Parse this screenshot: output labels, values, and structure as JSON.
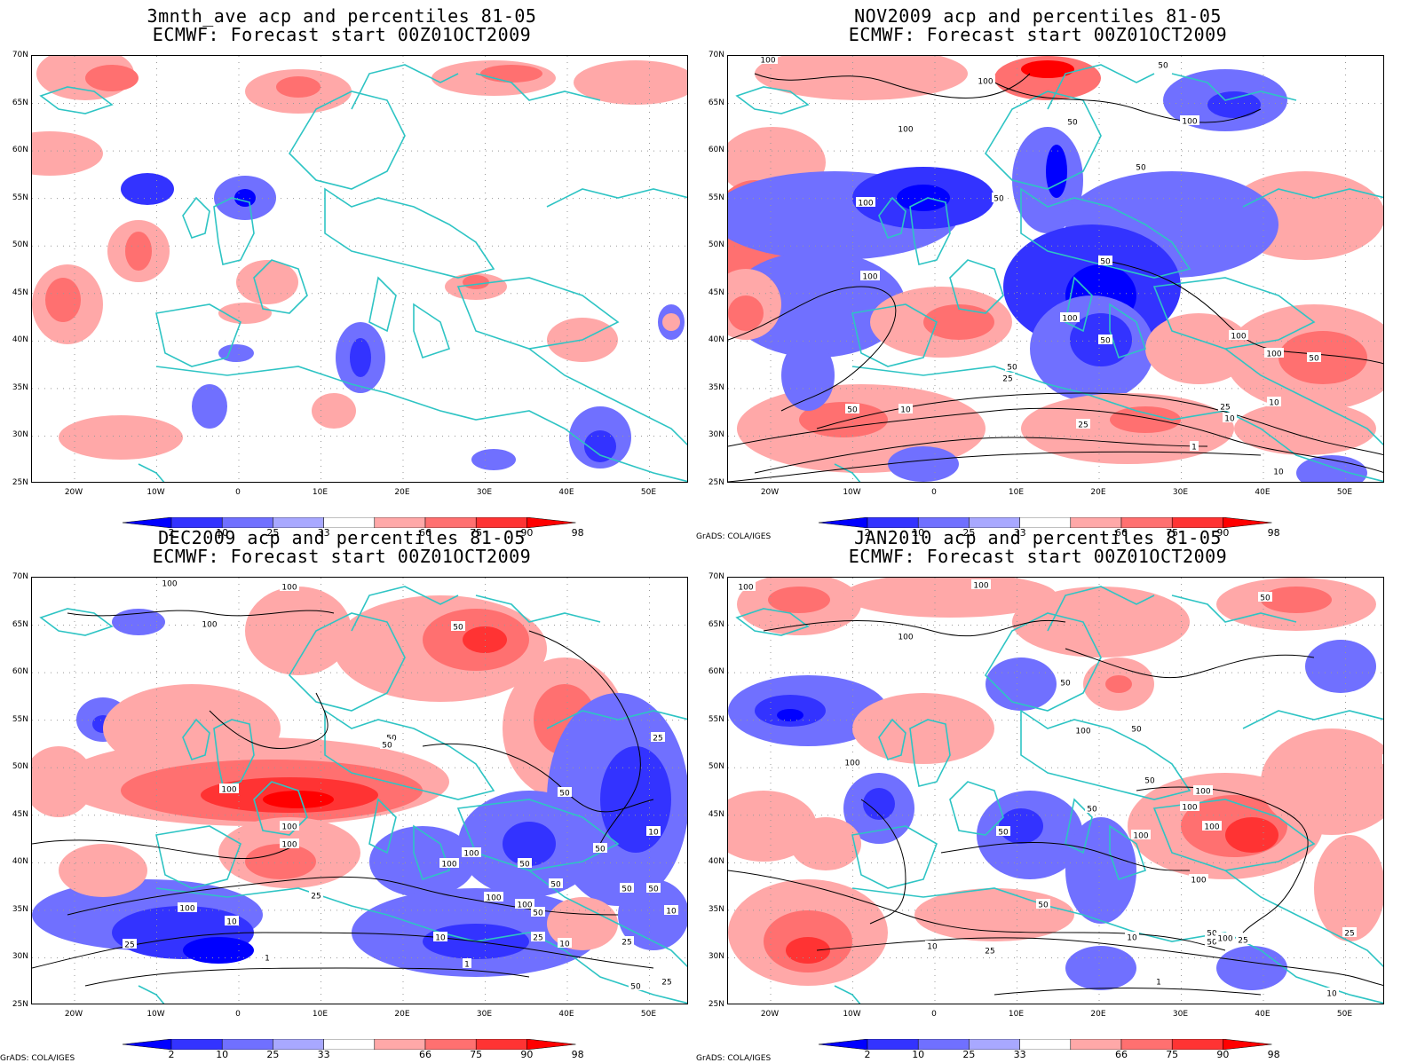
{
  "panels": [
    {
      "title_line1": "3mnth_ave acp and percentiles 81-05",
      "title_line2": "ECMWF: Forecast start 00Z01OCT2009",
      "credit": "",
      "contour_labels": []
    },
    {
      "title_line1": "NOV2009 acp and percentiles 81-05",
      "title_line2": "ECMWF: Forecast start 00Z01OCT2009",
      "credit": "GrADS: COLA/IGES",
      "contour_labels": [
        "100",
        "100",
        "50",
        "50",
        "100",
        "100",
        "50",
        "100",
        "50",
        "50",
        "100",
        "100",
        "50",
        "50",
        "25",
        "10",
        "1",
        "50",
        "100",
        "100",
        "50",
        "25",
        "10",
        "10",
        "25",
        "10"
      ]
    },
    {
      "title_line1": "DEC2009 acp and percentiles 81-05",
      "title_line2": "ECMWF: Forecast start 00Z01OCT2009",
      "credit": "GrADS: COLA/IGES",
      "contour_labels": [
        "100",
        "100",
        "100",
        "50",
        "50",
        "100",
        "100",
        "50",
        "100",
        "100",
        "25",
        "100",
        "100",
        "50",
        "50",
        "25",
        "10",
        "1",
        "1",
        "25",
        "10",
        "50",
        "50",
        "10",
        "25",
        "10",
        "50",
        "50",
        "50",
        "100",
        "25",
        "10",
        "50",
        "100",
        "25"
      ]
    },
    {
      "title_line1": "JAN2010 acp and percentiles 81-05",
      "title_line2": "ECMWF: Forecast start 00Z01OCT2009",
      "credit": "GrADS: COLA/IGES",
      "contour_labels": [
        "100",
        "100",
        "50",
        "100",
        "50",
        "100",
        "50",
        "100",
        "50",
        "50",
        "50",
        "100",
        "100",
        "100",
        "25",
        "50",
        "10",
        "25",
        "25",
        "100",
        "50",
        "50",
        "25",
        "10",
        "100",
        "100",
        "10",
        "1"
      ]
    }
  ],
  "lat_labels": [
    "70N",
    "65N",
    "60N",
    "55N",
    "50N",
    "45N",
    "40N",
    "35N",
    "30N",
    "25N"
  ],
  "lon_labels": [
    "20W",
    "10W",
    "0",
    "10E",
    "20E",
    "30E",
    "40E",
    "50E"
  ],
  "colorbar": {
    "labels": [
      "2",
      "10",
      "25",
      "33",
      "66",
      "75",
      "90",
      "98"
    ],
    "colors": [
      "#0000ff",
      "#3333ff",
      "#7070ff",
      "#a8a8ff",
      "#ffffff",
      "#ffa8a8",
      "#ff7070",
      "#ff3333",
      "#ff0000"
    ]
  },
  "colors": {
    "coastline": "#2ec4c4",
    "contour": "#000000",
    "grid": "#999999"
  }
}
